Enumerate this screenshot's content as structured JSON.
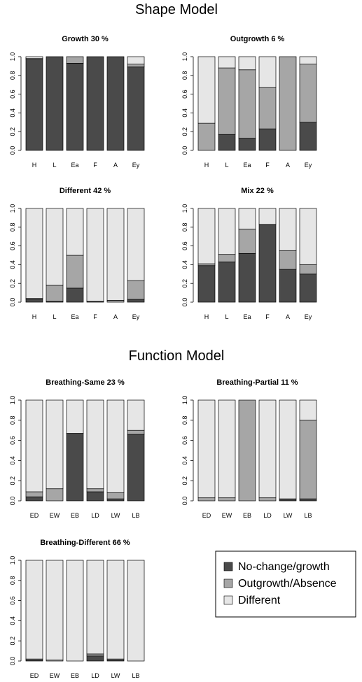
{
  "sections": [
    {
      "title": "Shape Model"
    },
    {
      "title": "Function Model"
    }
  ],
  "colors": {
    "no_change_growth": "#4a4a4a",
    "outgrowth_absence": "#a6a6a6",
    "different": "#e6e6e6",
    "outline": "#000000"
  },
  "legend": {
    "items": [
      {
        "label": "No-change/growth",
        "color": "#4a4a4a"
      },
      {
        "label": "Outgrowth/Absence",
        "color": "#a6a6a6"
      },
      {
        "label": "Different",
        "color": "#e6e6e6"
      }
    ]
  },
  "chart_data": [
    {
      "type": "bar",
      "stacked": true,
      "title": "Growth 30 %",
      "categories": [
        "H",
        "L",
        "Ea",
        "F",
        "A",
        "Ey"
      ],
      "ylim": [
        0,
        1
      ],
      "yticks": [
        "0.0",
        "0.2",
        "0.4",
        "0.6",
        "0.8",
        "1.0"
      ],
      "series": [
        {
          "name": "No-change/growth",
          "values": [
            0.97,
            1.0,
            0.93,
            1.0,
            1.0,
            0.89
          ]
        },
        {
          "name": "Outgrowth/Absence",
          "values": [
            0.01,
            0.0,
            0.07,
            0.0,
            0.0,
            0.03
          ]
        },
        {
          "name": "Different",
          "values": [
            0.02,
            0.0,
            0.0,
            0.0,
            0.0,
            0.08
          ]
        }
      ]
    },
    {
      "type": "bar",
      "stacked": true,
      "title": "Outgrowth 6 %",
      "categories": [
        "H",
        "L",
        "Ea",
        "F",
        "A",
        "Ey"
      ],
      "ylim": [
        0,
        1
      ],
      "yticks": [
        "0.0",
        "0.2",
        "0.4",
        "0.6",
        "0.8",
        "1.0"
      ],
      "series": [
        {
          "name": "No-change/growth",
          "values": [
            0.0,
            0.17,
            0.13,
            0.23,
            0.0,
            0.3
          ]
        },
        {
          "name": "Outgrowth/Absence",
          "values": [
            0.29,
            0.71,
            0.73,
            0.44,
            1.0,
            0.62
          ]
        },
        {
          "name": "Different",
          "values": [
            0.71,
            0.12,
            0.14,
            0.33,
            0.0,
            0.08
          ]
        }
      ]
    },
    {
      "type": "bar",
      "stacked": true,
      "title": "Different 42 %",
      "categories": [
        "H",
        "L",
        "Ea",
        "F",
        "A",
        "Ey"
      ],
      "ylim": [
        0,
        1
      ],
      "yticks": [
        "0.0",
        "0.2",
        "0.4",
        "0.6",
        "0.8",
        "1.0"
      ],
      "series": [
        {
          "name": "No-change/growth",
          "values": [
            0.03,
            0.01,
            0.15,
            0.01,
            0.0,
            0.03
          ]
        },
        {
          "name": "Outgrowth/Absence",
          "values": [
            0.01,
            0.17,
            0.35,
            0.0,
            0.02,
            0.2
          ]
        },
        {
          "name": "Different",
          "values": [
            0.96,
            0.82,
            0.5,
            0.99,
            0.98,
            0.77
          ]
        }
      ]
    },
    {
      "type": "bar",
      "stacked": true,
      "title": "Mix 22 %",
      "categories": [
        "H",
        "L",
        "Ea",
        "F",
        "A",
        "Ey"
      ],
      "ylim": [
        0,
        1
      ],
      "yticks": [
        "0.0",
        "0.2",
        "0.4",
        "0.6",
        "0.8",
        "1.0"
      ],
      "series": [
        {
          "name": "No-change/growth",
          "values": [
            0.39,
            0.43,
            0.52,
            0.83,
            0.35,
            0.3
          ]
        },
        {
          "name": "Outgrowth/Absence",
          "values": [
            0.02,
            0.08,
            0.26,
            0.0,
            0.2,
            0.1
          ]
        },
        {
          "name": "Different",
          "values": [
            0.59,
            0.49,
            0.22,
            0.17,
            0.45,
            0.6
          ]
        }
      ]
    },
    {
      "type": "bar",
      "stacked": true,
      "title": "Breathing-Same 23 %",
      "categories": [
        "ED",
        "EW",
        "EB",
        "LD",
        "LW",
        "LB"
      ],
      "ylim": [
        0,
        1
      ],
      "yticks": [
        "0.0",
        "0.2",
        "0.4",
        "0.6",
        "0.8",
        "1.0"
      ],
      "series": [
        {
          "name": "No-change/growth",
          "values": [
            0.04,
            0.0,
            0.67,
            0.09,
            0.02,
            0.66
          ]
        },
        {
          "name": "Outgrowth/Absence",
          "values": [
            0.05,
            0.12,
            0.0,
            0.03,
            0.06,
            0.04
          ]
        },
        {
          "name": "Different",
          "values": [
            0.91,
            0.88,
            0.33,
            0.88,
            0.92,
            0.3
          ]
        }
      ]
    },
    {
      "type": "bar",
      "stacked": true,
      "title": "Breathing-Partial 11 %",
      "categories": [
        "ED",
        "EW",
        "EB",
        "LD",
        "LW",
        "LB"
      ],
      "ylim": [
        0,
        1
      ],
      "yticks": [
        "0.0",
        "0.2",
        "0.4",
        "0.6",
        "0.8",
        "1.0"
      ],
      "series": [
        {
          "name": "No-change/growth",
          "values": [
            0.0,
            0.0,
            0.0,
            0.0,
            0.02,
            0.02
          ]
        },
        {
          "name": "Outgrowth/Absence",
          "values": [
            0.03,
            0.03,
            1.0,
            0.03,
            0.0,
            0.78
          ]
        },
        {
          "name": "Different",
          "values": [
            0.97,
            0.97,
            0.0,
            0.97,
            0.98,
            0.2
          ]
        }
      ]
    },
    {
      "type": "bar",
      "stacked": true,
      "title": "Breathing-Different 66 %",
      "categories": [
        "ED",
        "EW",
        "EB",
        "LD",
        "LW",
        "LB"
      ],
      "ylim": [
        0,
        1
      ],
      "yticks": [
        "0.0",
        "0.2",
        "0.4",
        "0.6",
        "0.8",
        "1.0"
      ],
      "series": [
        {
          "name": "No-change/growth",
          "values": [
            0.01,
            0.0,
            0.0,
            0.05,
            0.01,
            0.0
          ]
        },
        {
          "name": "Outgrowth/Absence",
          "values": [
            0.01,
            0.01,
            0.0,
            0.02,
            0.01,
            0.0
          ]
        },
        {
          "name": "Different",
          "values": [
            0.98,
            0.99,
            1.0,
            0.93,
            0.98,
            1.0
          ]
        }
      ]
    }
  ]
}
